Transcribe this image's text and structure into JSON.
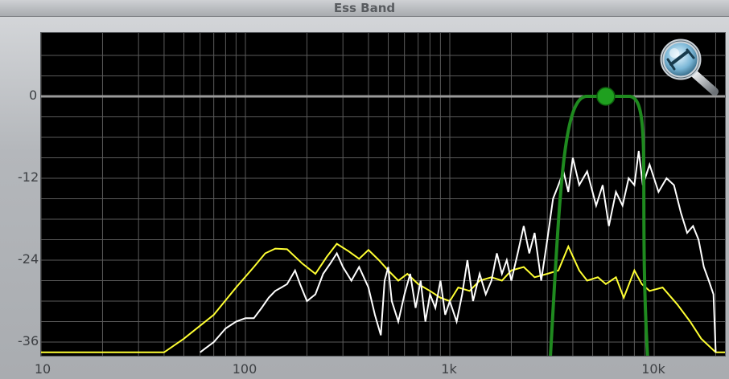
{
  "title": "Ess Band",
  "y_axis": {
    "ticks": [
      {
        "label": "0",
        "db": 0
      },
      {
        "label": "-12",
        "db": -12
      },
      {
        "label": "-24",
        "db": -24
      },
      {
        "label": "-36",
        "db": -36
      }
    ]
  },
  "x_axis": {
    "ticks": [
      {
        "label": "10",
        "hz": 10
      },
      {
        "label": "100",
        "hz": 100
      },
      {
        "label": "1k",
        "hz": 1000
      },
      {
        "label": "10k",
        "hz": 10000
      }
    ]
  },
  "zoom_button": {
    "icon": "magnifier-zoom-icon"
  },
  "colors": {
    "input_spectrum": "#ffff33",
    "output_spectrum": "#ffffff",
    "band_filter": "#1f8a1f",
    "band_handle": "#1fa01f",
    "grid": "#5a5a5a",
    "zero_line": "#9a9a9a"
  },
  "band": {
    "center_hz": 5800,
    "low_hz": 4300,
    "high_hz": 8200,
    "gain_db": 0
  },
  "spectrum_yellow": [
    [
      10,
      -37.5
    ],
    [
      40,
      -37.5
    ],
    [
      50,
      -35.5
    ],
    [
      70,
      -32
    ],
    [
      90,
      -28
    ],
    [
      110,
      -25
    ],
    [
      125,
      -23
    ],
    [
      140,
      -22.3
    ],
    [
      160,
      -22.4
    ],
    [
      190,
      -24.5
    ],
    [
      220,
      -26
    ],
    [
      250,
      -23.5
    ],
    [
      280,
      -21.6
    ],
    [
      320,
      -22.7
    ],
    [
      360,
      -23.8
    ],
    [
      400,
      -22.5
    ],
    [
      450,
      -24
    ],
    [
      500,
      -25.5
    ],
    [
      560,
      -27
    ],
    [
      620,
      -26
    ],
    [
      700,
      -27.5
    ],
    [
      800,
      -28.5
    ],
    [
      900,
      -29.5
    ],
    [
      1000,
      -30
    ],
    [
      1100,
      -28
    ],
    [
      1250,
      -28.5
    ],
    [
      1400,
      -27
    ],
    [
      1600,
      -26.5
    ],
    [
      1800,
      -27
    ],
    [
      2000,
      -25.5
    ],
    [
      2300,
      -25
    ],
    [
      2600,
      -26.5
    ],
    [
      3000,
      -26
    ],
    [
      3400,
      -25.5
    ],
    [
      3800,
      -22
    ],
    [
      4300,
      -25.5
    ],
    [
      4700,
      -27
    ],
    [
      5300,
      -26.5
    ],
    [
      5800,
      -27.5
    ],
    [
      6500,
      -26.5
    ],
    [
      7100,
      -29.5
    ],
    [
      8000,
      -25.5
    ],
    [
      8700,
      -27.5
    ],
    [
      9500,
      -28.5
    ],
    [
      11000,
      -28
    ],
    [
      13000,
      -30.5
    ],
    [
      15000,
      -33
    ],
    [
      17000,
      -35.5
    ],
    [
      20000,
      -37.5
    ],
    [
      23000,
      -37.5
    ]
  ],
  "spectrum_white": [
    [
      60,
      -37.5
    ],
    [
      70,
      -36
    ],
    [
      80,
      -34
    ],
    [
      90,
      -33
    ],
    [
      100,
      -32.5
    ],
    [
      110,
      -32.5
    ],
    [
      120,
      -31
    ],
    [
      130,
      -29.5
    ],
    [
      140,
      -28.5
    ],
    [
      150,
      -28
    ],
    [
      160,
      -27.5
    ],
    [
      175,
      -25.5
    ],
    [
      185,
      -27.5
    ],
    [
      200,
      -30
    ],
    [
      220,
      -29
    ],
    [
      240,
      -26
    ],
    [
      260,
      -24.5
    ],
    [
      280,
      -23
    ],
    [
      300,
      -25
    ],
    [
      330,
      -27
    ],
    [
      360,
      -25
    ],
    [
      400,
      -28
    ],
    [
      430,
      -32
    ],
    [
      460,
      -35
    ],
    [
      480,
      -27
    ],
    [
      500,
      -25
    ],
    [
      520,
      -30
    ],
    [
      560,
      -33
    ],
    [
      600,
      -29
    ],
    [
      640,
      -26
    ],
    [
      680,
      -31
    ],
    [
      720,
      -27
    ],
    [
      760,
      -33
    ],
    [
      800,
      -29
    ],
    [
      850,
      -31
    ],
    [
      900,
      -27
    ],
    [
      950,
      -32
    ],
    [
      1000,
      -30
    ],
    [
      1080,
      -33
    ],
    [
      1150,
      -29
    ],
    [
      1220,
      -24
    ],
    [
      1300,
      -30
    ],
    [
      1400,
      -26
    ],
    [
      1500,
      -29
    ],
    [
      1600,
      -27
    ],
    [
      1700,
      -23
    ],
    [
      1800,
      -26
    ],
    [
      1900,
      -24
    ],
    [
      2000,
      -27
    ],
    [
      2150,
      -23
    ],
    [
      2300,
      -19
    ],
    [
      2450,
      -23
    ],
    [
      2600,
      -20
    ],
    [
      2800,
      -27
    ],
    [
      3000,
      -21
    ],
    [
      3200,
      -15
    ],
    [
      3400,
      -13
    ],
    [
      3600,
      -11
    ],
    [
      3800,
      -14
    ],
    [
      4000,
      -9
    ],
    [
      4300,
      -13
    ],
    [
      4700,
      -11
    ],
    [
      5200,
      -16
    ],
    [
      5600,
      -13
    ],
    [
      6000,
      -19
    ],
    [
      6500,
      -14
    ],
    [
      7000,
      -16
    ],
    [
      7500,
      -12
    ],
    [
      8000,
      -13
    ],
    [
      8400,
      -8
    ],
    [
      8800,
      -13
    ],
    [
      9500,
      -10
    ],
    [
      10500,
      -14
    ],
    [
      11500,
      -12
    ],
    [
      12500,
      -13
    ],
    [
      13500,
      -17
    ],
    [
      14500,
      -20
    ],
    [
      15500,
      -19
    ],
    [
      16500,
      -21
    ],
    [
      17500,
      -25
    ],
    [
      18500,
      -27
    ],
    [
      19500,
      -29
    ],
    [
      20000,
      -37.5
    ]
  ]
}
